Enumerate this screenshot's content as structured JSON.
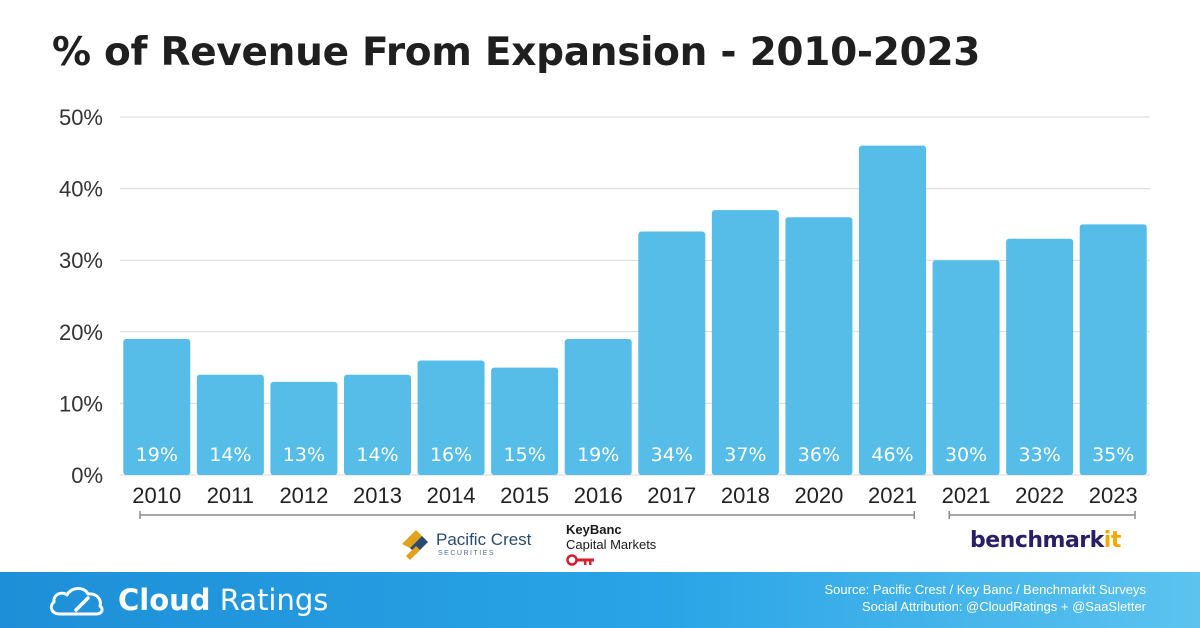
{
  "chart_data": {
    "type": "bar",
    "title": "% of Revenue From Expansion - 2010-2023",
    "categories": [
      "2010",
      "2011",
      "2012",
      "2013",
      "2014",
      "2015",
      "2016",
      "2017",
      "2018",
      "2020",
      "2021",
      "2021",
      "2022",
      "2023"
    ],
    "values": [
      19,
      14,
      13,
      14,
      16,
      15,
      19,
      34,
      37,
      36,
      46,
      30,
      33,
      35
    ],
    "data_labels": [
      "19%",
      "14%",
      "13%",
      "14%",
      "16%",
      "15%",
      "19%",
      "34%",
      "37%",
      "36%",
      "46%",
      "30%",
      "33%",
      "35%"
    ],
    "y_ticks": [
      "0%",
      "10%",
      "20%",
      "30%",
      "40%",
      "50%"
    ],
    "ylim": [
      0,
      50
    ],
    "grid": true,
    "bar_color": "#56bde8",
    "label_color": "#ffffff",
    "groups": [
      {
        "source": "Pacific Crest / KeyBanc",
        "from_index": 0,
        "to_index": 10
      },
      {
        "source": "Benchmarkit",
        "from_index": 11,
        "to_index": 13
      }
    ]
  },
  "logos": {
    "pacific_crest": {
      "name": "Pacific Crest",
      "sub": "SECURITIES"
    },
    "keybanc": {
      "name": "KeyBanc",
      "sub": "Capital Markets"
    },
    "benchmarkit": {
      "text_main": "benchmark",
      "text_accent": "it",
      "accent_color": "#f2a900"
    }
  },
  "footer": {
    "brand_bold": "Cloud",
    "brand_light": " Ratings",
    "source": "Source: Pacific Crest / Key Banc / Benchmarkit Surveys",
    "attribution": "Social Attribution: @CloudRatings + @SaaSletter"
  }
}
